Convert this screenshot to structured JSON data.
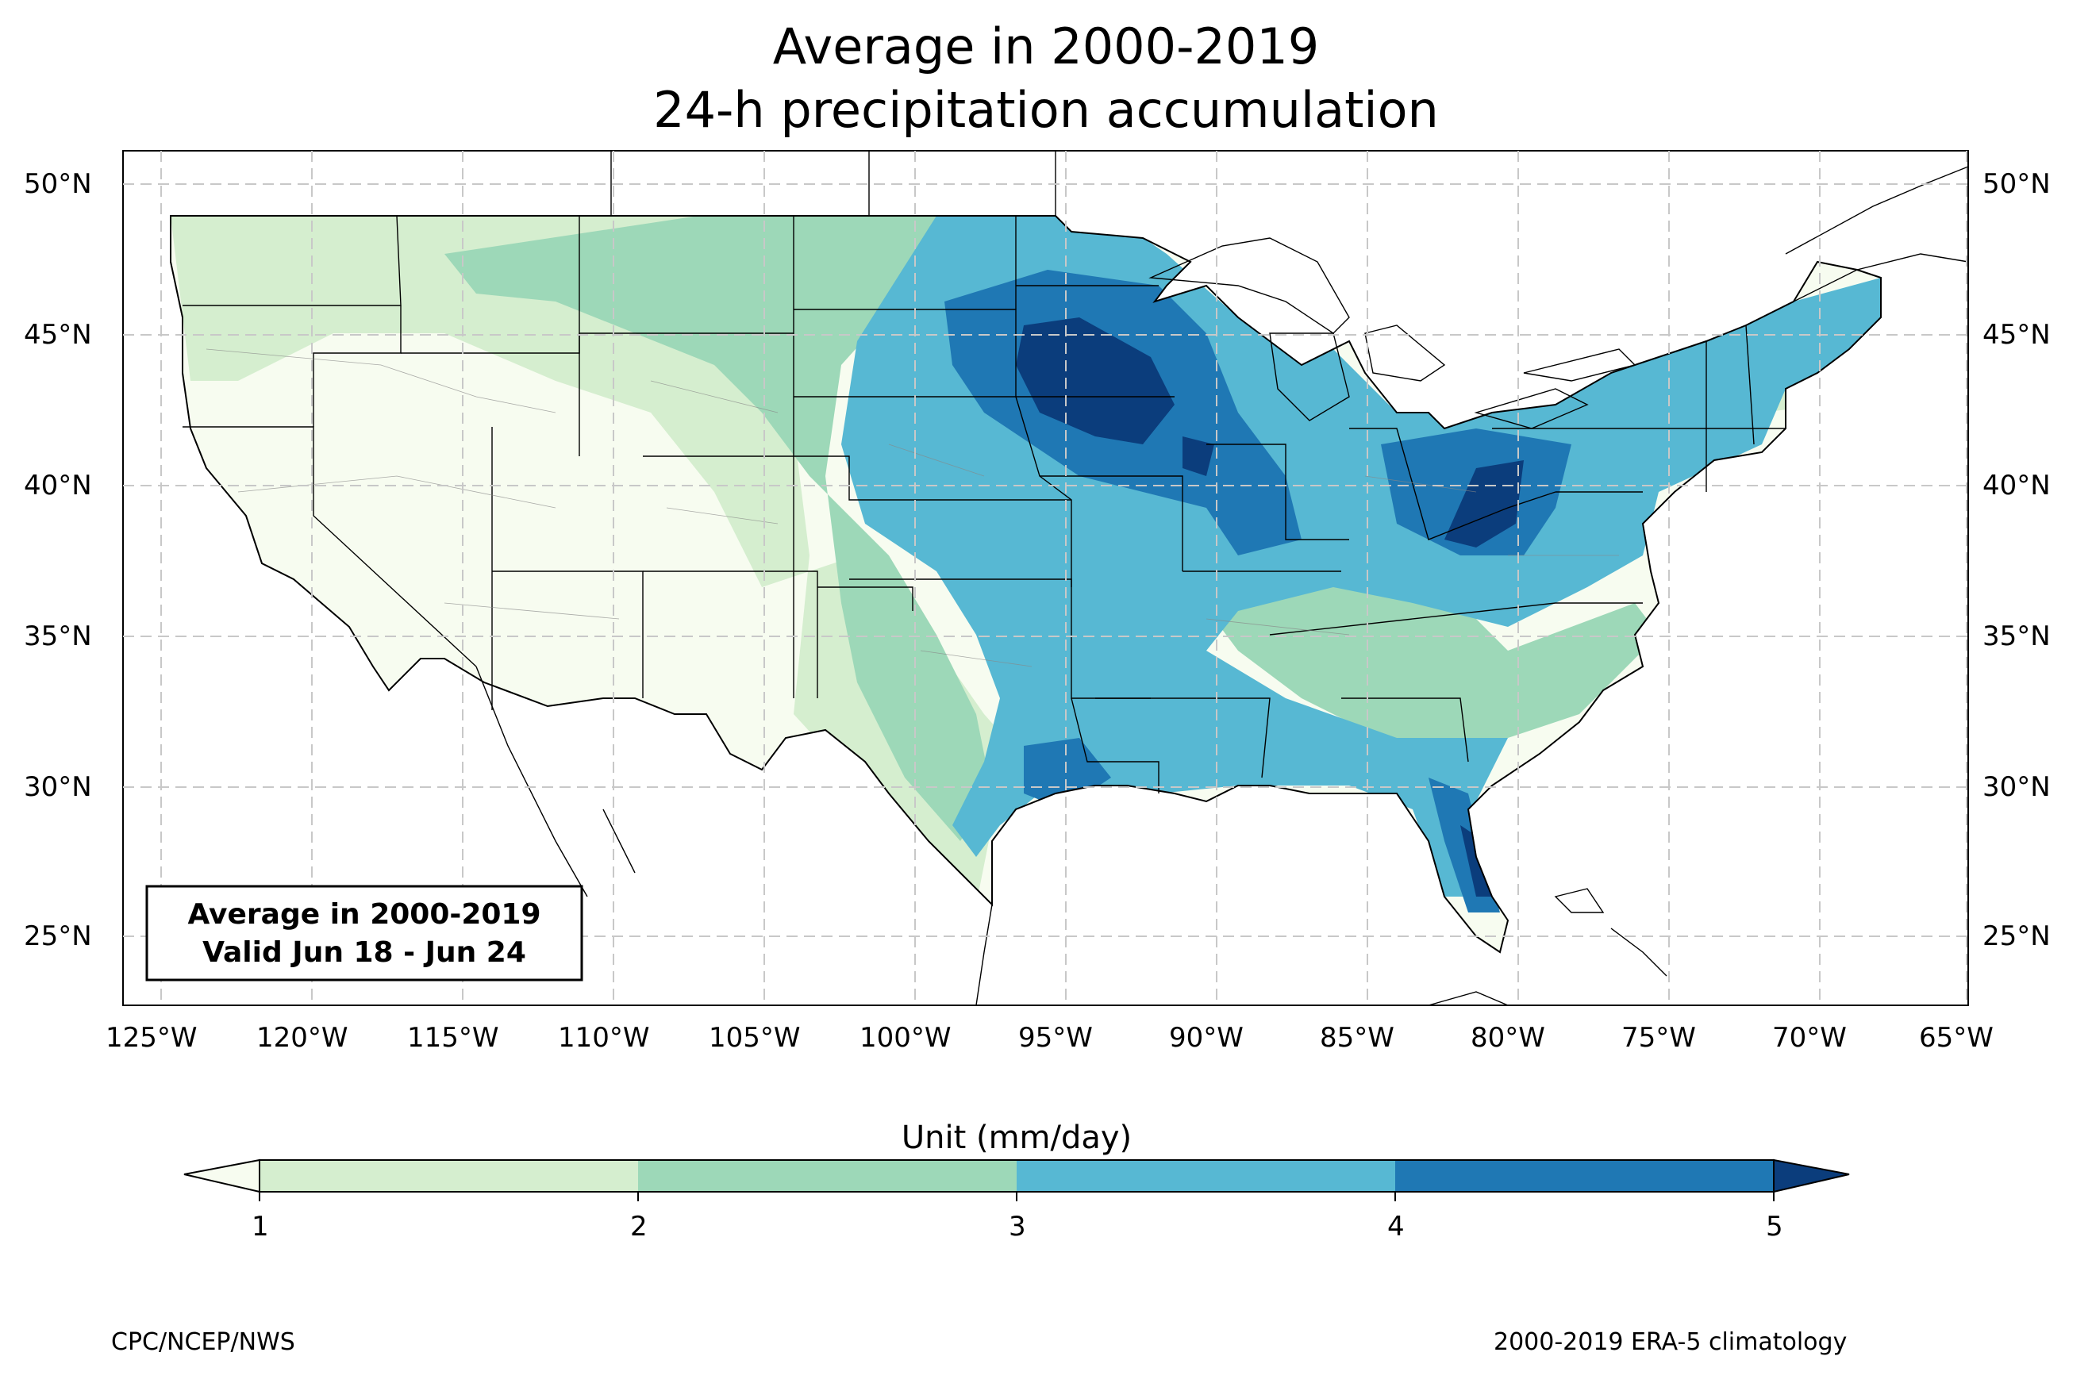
{
  "title_line1": "Average in 2000-2019",
  "title_line2": "24-h precipitation accumulation",
  "inset": {
    "line1": "Average in 2000-2019",
    "line2": "Valid Jun 18 - Jun 24"
  },
  "lat_labels": [
    "50°N",
    "45°N",
    "40°N",
    "35°N",
    "30°N",
    "25°N"
  ],
  "lon_labels": [
    "125°W",
    "120°W",
    "115°W",
    "110°W",
    "105°W",
    "100°W",
    "95°W",
    "90°W",
    "85°W",
    "80°W",
    "75°W",
    "70°W",
    "65°W"
  ],
  "colorbar": {
    "title": "Unit (mm/day)",
    "ticks": [
      "1",
      "2",
      "3",
      "4",
      "5"
    ],
    "colors": [
      "#d5eecf",
      "#9dd8b8",
      "#57b8d3",
      "#1f78b4",
      "#0b3d7c"
    ],
    "under_color": "#f7fcf0",
    "extend": "both"
  },
  "credits": {
    "left": "CPC/NCEP/NWS",
    "right": "2000-2019 ERA-5 climatology"
  },
  "map_style": {
    "land_dry": "#f7fcf0",
    "border": "#000000",
    "gridline": "#c8c8c8"
  }
}
